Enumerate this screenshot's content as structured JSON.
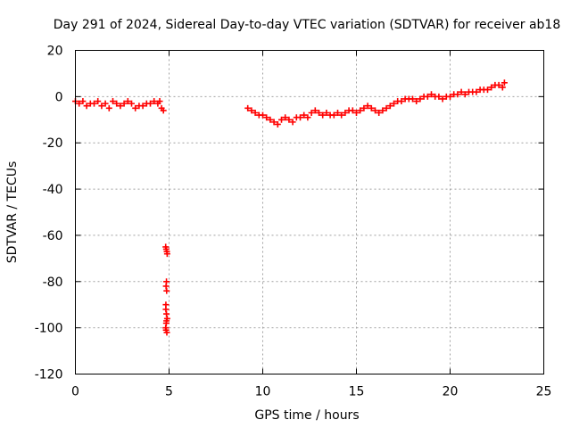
{
  "chart_data": {
    "type": "scatter",
    "title": "Day 291 of 2024, Sidereal Day-to-day VTEC variation (SDTVAR) for receiver ab18",
    "xlabel": "GPS time / hours",
    "ylabel": "SDTVAR / TECUs",
    "xlim": [
      0,
      25
    ],
    "ylim": [
      -120,
      20
    ],
    "x_ticks": [
      0,
      5,
      10,
      15,
      20,
      25
    ],
    "y_ticks": [
      -120,
      -100,
      -80,
      -60,
      -40,
      -20,
      0,
      20
    ],
    "grid": true,
    "marker": "+",
    "series_color": "#ff0000",
    "series": [
      {
        "name": "SDTVAR",
        "x": [
          0.0,
          0.2,
          0.4,
          0.6,
          0.8,
          1.0,
          1.2,
          1.4,
          1.6,
          1.8,
          2.0,
          2.2,
          2.4,
          2.6,
          2.8,
          3.0,
          3.2,
          3.4,
          3.6,
          3.8,
          4.0,
          4.2,
          4.4,
          4.5,
          4.6,
          4.7,
          4.82,
          4.85,
          4.88,
          4.9,
          4.86,
          4.84,
          4.87,
          4.83,
          4.86,
          4.9,
          4.85,
          4.82,
          4.84,
          4.88,
          4.86,
          4.83,
          9.2,
          9.4,
          9.6,
          9.8,
          10.0,
          10.2,
          10.4,
          10.6,
          10.8,
          11.0,
          11.2,
          11.4,
          11.6,
          11.8,
          12.0,
          12.2,
          12.4,
          12.6,
          12.8,
          13.0,
          13.2,
          13.4,
          13.6,
          13.8,
          14.0,
          14.2,
          14.4,
          14.6,
          14.8,
          15.0,
          15.2,
          15.4,
          15.6,
          15.8,
          16.0,
          16.2,
          16.4,
          16.6,
          16.8,
          17.0,
          17.2,
          17.4,
          17.6,
          17.8,
          18.0,
          18.2,
          18.4,
          18.6,
          18.8,
          19.0,
          19.2,
          19.4,
          19.6,
          19.8,
          20.0,
          20.2,
          20.4,
          20.6,
          20.8,
          21.0,
          21.2,
          21.4,
          21.6,
          21.8,
          22.0,
          22.2,
          22.4,
          22.6,
          22.8,
          22.9
        ],
        "y": [
          -2,
          -3,
          -2,
          -4,
          -3,
          -3,
          -2,
          -4,
          -3,
          -5,
          -2,
          -3,
          -4,
          -3,
          -2,
          -3,
          -5,
          -4,
          -4,
          -3,
          -3,
          -2,
          -3,
          -2,
          -5,
          -6,
          -65,
          -66,
          -67,
          -68,
          -80,
          -82,
          -84,
          -92,
          -94,
          -96,
          -98,
          -100,
          -101,
          -102,
          -97,
          -90,
          -5,
          -6,
          -7,
          -8,
          -8,
          -9,
          -10,
          -11,
          -12,
          -10,
          -9,
          -10,
          -11,
          -9,
          -9,
          -8,
          -9,
          -7,
          -6,
          -7,
          -8,
          -7,
          -8,
          -8,
          -7,
          -8,
          -7,
          -6,
          -6,
          -7,
          -6,
          -5,
          -4,
          -5,
          -6,
          -7,
          -6,
          -5,
          -4,
          -3,
          -2,
          -2,
          -1,
          -1,
          -1,
          -2,
          -1,
          0,
          0,
          1,
          0,
          0,
          -1,
          0,
          0,
          1,
          1,
          2,
          1,
          2,
          2,
          2,
          3,
          3,
          3,
          4,
          5,
          5,
          4,
          6
        ]
      }
    ]
  }
}
